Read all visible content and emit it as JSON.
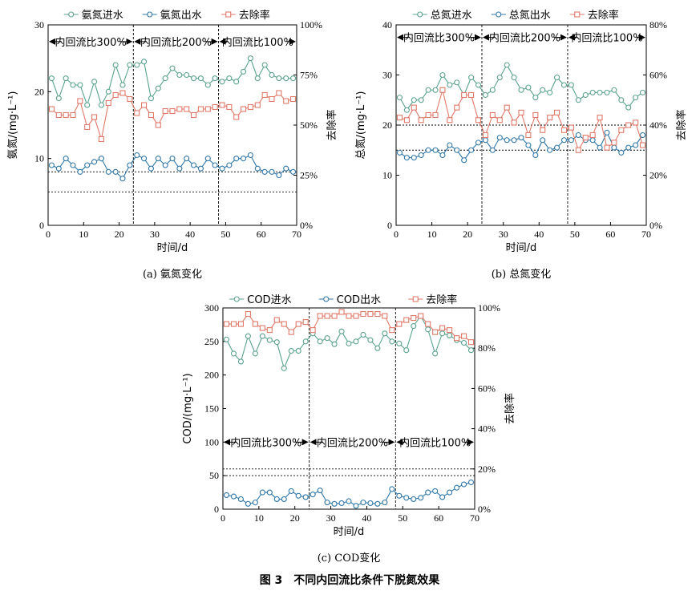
{
  "figure_title": "图 3　不同内回流比条件下脱氮效果",
  "colors": {
    "influent": "#5aa28e",
    "effluent": "#2f77a8",
    "removal": "#e07a6a",
    "axis": "#000000"
  },
  "chart_data": [
    {
      "type": "line",
      "caption": "(a) 氨氮变化",
      "ylabel": "氨氮/(mg·L⁻¹)",
      "y2label": "去除率",
      "xlabel": "时间/d",
      "xlim": [
        0,
        70
      ],
      "ylim": [
        0,
        30
      ],
      "y2lim": [
        0,
        100
      ],
      "xticks": [
        "0",
        "10",
        "20",
        "30",
        "40",
        "50",
        "60",
        "70"
      ],
      "yticks": [
        "0",
        "10",
        "20",
        "30"
      ],
      "y2ticks": [
        "0%",
        "25%",
        "50%",
        "75%",
        "100%"
      ],
      "phases": [
        "内回流比300%",
        "内回流比200%",
        "内回流比100%"
      ],
      "phase_bounds": [
        0,
        24,
        48,
        70
      ],
      "phase_arrow_y": 27.5,
      "ref_lines": [
        8,
        5
      ],
      "legend": [
        "氨氮进水",
        "氨氮出水",
        "去除率"
      ],
      "series": [
        {
          "name": "氨氮进水",
          "kind": "influent",
          "axis": "left",
          "x": [
            1,
            3,
            5,
            7,
            9,
            11,
            13,
            15,
            17,
            19,
            21,
            23,
            25,
            27,
            29,
            31,
            33,
            35,
            37,
            39,
            41,
            43,
            45,
            47,
            49,
            51,
            53,
            55,
            57,
            59,
            61,
            63,
            65,
            67,
            69
          ],
          "y": [
            22,
            19,
            22,
            21,
            21,
            18,
            21.5,
            18,
            20,
            24,
            21,
            24,
            24,
            24.5,
            19,
            20.5,
            22,
            23.5,
            22.5,
            22.5,
            22,
            22,
            21,
            22,
            21.5,
            22,
            21.5,
            23,
            25,
            22,
            24,
            22.5,
            22,
            22,
            22
          ]
        },
        {
          "name": "氨氮出水",
          "kind": "effluent",
          "axis": "left",
          "x": [
            1,
            3,
            5,
            7,
            9,
            11,
            13,
            15,
            17,
            19,
            21,
            23,
            25,
            27,
            29,
            31,
            33,
            35,
            37,
            39,
            41,
            43,
            45,
            47,
            49,
            51,
            53,
            55,
            57,
            59,
            61,
            63,
            65,
            67,
            69
          ],
          "y": [
            9,
            8.5,
            10,
            9,
            8,
            9,
            9.5,
            10,
            8,
            8,
            7,
            9,
            10.5,
            10,
            8.5,
            10,
            9,
            10,
            8.5,
            10,
            9,
            8.5,
            10,
            9,
            8.5,
            9,
            10,
            10,
            10.5,
            8.5,
            8,
            8,
            7.5,
            8.5,
            8
          ]
        },
        {
          "name": "去除率",
          "kind": "removal",
          "axis": "right",
          "x": [
            1,
            3,
            5,
            7,
            9,
            11,
            13,
            15,
            17,
            19,
            21,
            23,
            25,
            27,
            29,
            31,
            33,
            35,
            37,
            39,
            41,
            43,
            45,
            47,
            49,
            51,
            53,
            55,
            57,
            59,
            61,
            63,
            65,
            67,
            69
          ],
          "y": [
            58,
            55,
            55,
            55,
            62,
            49,
            54,
            43,
            61,
            65,
            66,
            63,
            56,
            60,
            55,
            50,
            57,
            57,
            58,
            58,
            55,
            58,
            58,
            59,
            60,
            59,
            54,
            58,
            59,
            60,
            65,
            63,
            66,
            62,
            63
          ]
        }
      ]
    },
    {
      "type": "line",
      "caption": "(b) 总氮变化",
      "ylabel": "总氮/(mg·L⁻¹)",
      "y2label": "去除率",
      "xlabel": "时间/d",
      "xlim": [
        0,
        70
      ],
      "ylim": [
        0,
        40
      ],
      "y2lim": [
        0,
        80
      ],
      "xticks": [
        "0",
        "10",
        "20",
        "30",
        "40",
        "50",
        "60",
        "70"
      ],
      "yticks": [
        "0",
        "10",
        "20",
        "30",
        "40"
      ],
      "y2ticks": [
        "0%",
        "20%",
        "40%",
        "60%",
        "80%"
      ],
      "phases": [
        "内回流比300%",
        "内回流比200%",
        "内回流比100%"
      ],
      "phase_bounds": [
        0,
        24,
        48,
        70
      ],
      "phase_arrow_y": 37.5,
      "ref_lines": [
        20,
        15
      ],
      "legend": [
        "总氮进水",
        "总氮出水",
        "去除率"
      ],
      "series": [
        {
          "name": "总氮进水",
          "kind": "influent",
          "axis": "left",
          "x": [
            1,
            3,
            5,
            7,
            9,
            11,
            13,
            15,
            17,
            19,
            21,
            23,
            25,
            27,
            29,
            31,
            33,
            35,
            37,
            39,
            41,
            43,
            45,
            47,
            49,
            51,
            53,
            55,
            57,
            59,
            61,
            63,
            65,
            67,
            69
          ],
          "y": [
            25.5,
            23,
            25,
            25,
            27,
            27,
            30,
            28,
            28.5,
            26,
            29.5,
            28,
            26,
            27,
            29.5,
            32,
            29.5,
            27,
            27.5,
            25.5,
            27,
            26.5,
            29.5,
            28,
            28,
            25,
            26,
            26.5,
            26.5,
            26.5,
            27,
            25,
            23.5,
            25.5,
            26.5
          ]
        },
        {
          "name": "总氮出水",
          "kind": "effluent",
          "axis": "left",
          "x": [
            1,
            3,
            5,
            7,
            9,
            11,
            13,
            15,
            17,
            19,
            21,
            23,
            25,
            27,
            29,
            31,
            33,
            35,
            37,
            39,
            41,
            43,
            45,
            47,
            49,
            51,
            53,
            55,
            57,
            59,
            61,
            63,
            65,
            67,
            69
          ],
          "y": [
            14.5,
            13.5,
            13.5,
            14,
            15,
            15,
            14,
            16,
            15,
            13,
            15,
            16.5,
            17,
            15,
            17.5,
            17,
            17,
            17.5,
            16,
            14,
            17,
            15,
            15.5,
            17,
            17,
            18,
            17,
            17,
            15.5,
            18.5,
            15.5,
            14.5,
            15.5,
            16,
            18
          ]
        },
        {
          "name": "去除率",
          "kind": "removal",
          "axis": "right",
          "x": [
            1,
            3,
            5,
            7,
            9,
            11,
            13,
            15,
            17,
            19,
            21,
            23,
            25,
            27,
            29,
            31,
            33,
            35,
            37,
            39,
            41,
            43,
            45,
            47,
            49,
            51,
            53,
            55,
            57,
            59,
            61,
            63,
            65,
            67,
            69
          ],
          "y": [
            43,
            42,
            47,
            42,
            44,
            44,
            54,
            42,
            47,
            52,
            52,
            42,
            36,
            44,
            42,
            47,
            41,
            45,
            36,
            44,
            38,
            43,
            45,
            38,
            39,
            30,
            35,
            36,
            43,
            31,
            33,
            38,
            40,
            41,
            32
          ]
        }
      ]
    },
    {
      "type": "line",
      "caption": "(c) COD变化",
      "ylabel": "COD/(mg·L⁻¹)",
      "y2label": "去除率",
      "xlabel": "时间/d",
      "xlim": [
        0,
        70
      ],
      "ylim": [
        0,
        300
      ],
      "y2lim": [
        0,
        100
      ],
      "xticks": [
        "0",
        "10",
        "20",
        "30",
        "40",
        "50",
        "60",
        "70"
      ],
      "yticks": [
        "0",
        "50",
        "100",
        "150",
        "200",
        "250",
        "300"
      ],
      "y2ticks": [
        "0%",
        "20%",
        "40%",
        "60%",
        "80%",
        "100%"
      ],
      "phases": [
        "内回流比300%",
        "内回流比200%",
        "内回流比100%"
      ],
      "phase_bounds": [
        0,
        24,
        48,
        70
      ],
      "phase_arrow_y": 100,
      "ref_lines": [
        60,
        50
      ],
      "legend": [
        "COD进水",
        "COD出水",
        "去除率"
      ],
      "series": [
        {
          "name": "COD进水",
          "kind": "influent",
          "axis": "left",
          "x": [
            1,
            3,
            5,
            7,
            9,
            11,
            13,
            15,
            17,
            19,
            21,
            23,
            25,
            27,
            29,
            31,
            33,
            35,
            37,
            39,
            41,
            43,
            45,
            47,
            49,
            51,
            53,
            55,
            57,
            59,
            61,
            63,
            65,
            67,
            69
          ],
          "y": [
            253,
            232,
            220,
            258,
            232,
            258,
            252,
            249,
            210,
            236,
            236,
            250,
            262,
            250,
            255,
            246,
            265,
            247,
            250,
            260,
            252,
            240,
            262,
            250,
            247,
            237,
            273,
            288,
            268,
            232,
            262,
            259,
            252,
            248,
            237
          ]
        },
        {
          "name": "COD出水",
          "kind": "effluent",
          "axis": "left",
          "x": [
            1,
            3,
            5,
            7,
            9,
            11,
            13,
            15,
            17,
            19,
            21,
            23,
            25,
            27,
            29,
            31,
            33,
            35,
            37,
            39,
            41,
            43,
            45,
            47,
            49,
            51,
            53,
            55,
            57,
            59,
            61,
            63,
            65,
            67,
            69
          ],
          "y": [
            21,
            19,
            15,
            8,
            10,
            25,
            25,
            15,
            15,
            27,
            20,
            18,
            22,
            28,
            10,
            8,
            9,
            12,
            5,
            10,
            9,
            8,
            10,
            30,
            20,
            17,
            15,
            17,
            25,
            27,
            18,
            25,
            32,
            37,
            40
          ]
        },
        {
          "name": "去除率",
          "kind": "removal",
          "axis": "right",
          "x": [
            1,
            3,
            5,
            7,
            9,
            11,
            13,
            15,
            17,
            19,
            21,
            23,
            25,
            27,
            29,
            31,
            33,
            35,
            37,
            39,
            41,
            43,
            45,
            47,
            49,
            51,
            53,
            55,
            57,
            59,
            61,
            63,
            65,
            67,
            69
          ],
          "y": [
            92,
            92,
            92,
            97,
            92,
            90,
            89,
            94,
            92,
            88,
            92,
            93,
            89,
            96,
            96,
            96,
            98,
            96,
            96,
            97,
            97,
            97,
            96,
            89,
            92,
            94,
            95,
            96,
            92,
            88,
            90,
            89,
            85,
            86,
            83
          ]
        }
      ]
    }
  ]
}
